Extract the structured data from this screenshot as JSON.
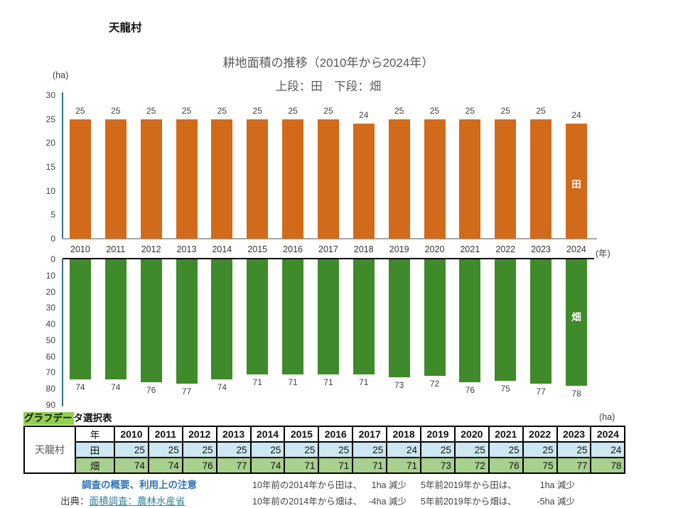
{
  "village": "天龍村",
  "chart": {
    "title": "耕地面積の推移（2010年から2024年）",
    "subtitle": "上段：田　下段：畑",
    "y_unit": "(ha)",
    "x_unit": "(年)"
  },
  "chart_data": {
    "type": "bar",
    "title": "耕地面積の推移（2010年から2024年）",
    "subtitle": "上段：田　下段：畑",
    "ylabel": "(ha)",
    "xlabel": "(年)",
    "categories": [
      "2010",
      "2011",
      "2012",
      "2013",
      "2014",
      "2015",
      "2016",
      "2017",
      "2018",
      "2019",
      "2020",
      "2021",
      "2022",
      "2023",
      "2024"
    ],
    "series": [
      {
        "name": "田",
        "orientation": "up",
        "color": "#D26A1B",
        "axis_range": [
          0,
          30
        ],
        "ticks": [
          30,
          25,
          20,
          15,
          10,
          5,
          0
        ],
        "values": [
          25,
          25,
          25,
          25,
          25,
          25,
          25,
          25,
          24,
          25,
          25,
          25,
          25,
          25,
          24
        ]
      },
      {
        "name": "畑",
        "orientation": "down",
        "color": "#3F8A2A",
        "axis_range": [
          0,
          90
        ],
        "ticks": [
          0,
          10,
          20,
          30,
          40,
          50,
          60,
          70,
          80,
          90
        ],
        "values": [
          74,
          74,
          76,
          77,
          74,
          71,
          71,
          71,
          71,
          73,
          72,
          76,
          75,
          77,
          78
        ]
      }
    ],
    "grid": false,
    "legend": "labels inside last bar"
  },
  "table": {
    "title_hl": "グラフデー",
    "title_rest": "タ選択表",
    "unit": "(ha)",
    "row_header": "天龍村",
    "col_header": "年",
    "years": [
      "2010",
      "2011",
      "2012",
      "2013",
      "2014",
      "2015",
      "2016",
      "2017",
      "2018",
      "2019",
      "2020",
      "2021",
      "2022",
      "2023",
      "2024"
    ],
    "rows": [
      {
        "label": "田",
        "values": [
          25,
          25,
          25,
          25,
          25,
          25,
          25,
          25,
          24,
          25,
          25,
          25,
          25,
          25,
          24
        ],
        "bg": "#CDE7F2"
      },
      {
        "label": "畑",
        "values": [
          74,
          74,
          76,
          77,
          74,
          71,
          71,
          71,
          71,
          73,
          72,
          76,
          75,
          77,
          78
        ],
        "bg": "#A9D08E"
      }
    ]
  },
  "notes": {
    "survey_link": "調査の概要、利用上の注意",
    "source_label": "出典：",
    "source_link": "面積調査：農林水産省",
    "comparisons": [
      {
        "text": "10年前の2014年から田は、",
        "value": "1ha 減少"
      },
      {
        "text": "5年前2019年から田は、",
        "value": "1ha 減少"
      },
      {
        "text": "10年前の2014年から畑は、",
        "value": "-4ha 減少"
      },
      {
        "text": "5年前2019年から畑は、",
        "value": "-5ha 減少"
      }
    ]
  }
}
